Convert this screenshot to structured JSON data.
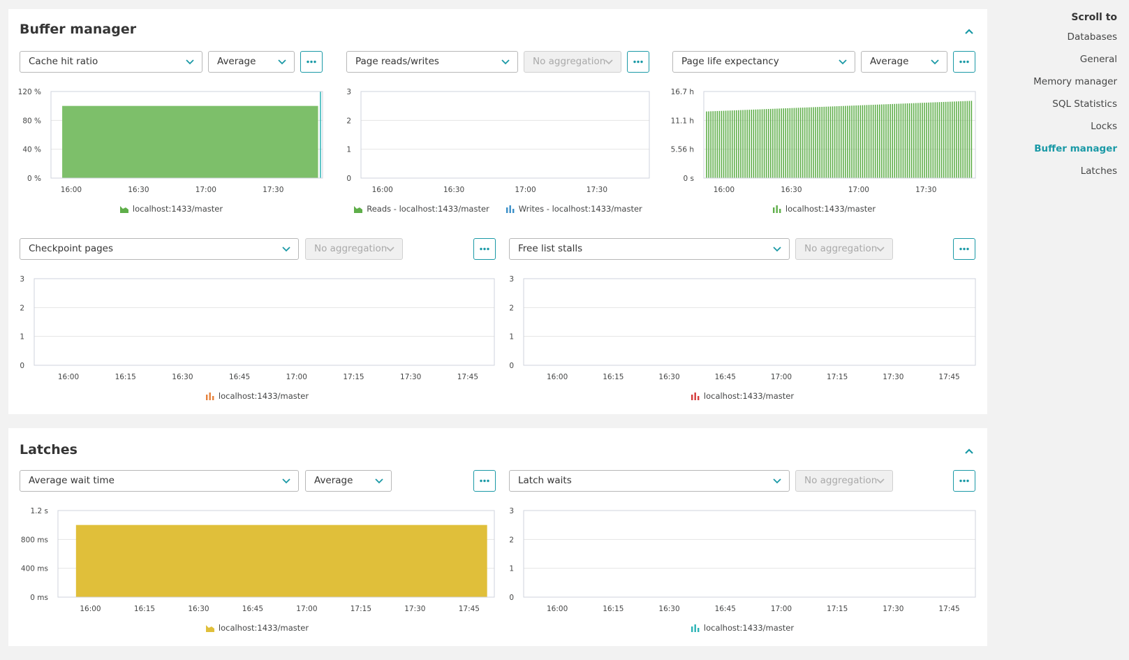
{
  "nav": {
    "title": "Scroll to",
    "items": [
      {
        "label": "Databases",
        "active": false
      },
      {
        "label": "General",
        "active": false
      },
      {
        "label": "Memory manager",
        "active": false
      },
      {
        "label": "SQL Statistics",
        "active": false
      },
      {
        "label": "Locks",
        "active": false
      },
      {
        "label": "Buffer manager",
        "active": true
      },
      {
        "label": "Latches",
        "active": false
      }
    ]
  },
  "colors": {
    "accent": "#1a99a6",
    "green": "#7dbf6a",
    "green_dark": "#5fae4a",
    "blue": "#3a8fc8",
    "orange": "#e6813a",
    "red": "#d43b3b",
    "yellow": "#e0bf3a",
    "teal": "#2ab3b5"
  },
  "buffer_manager": {
    "title": "Buffer manager",
    "cache_hit": {
      "metric": "Cache hit ratio",
      "aggregation": "Average",
      "legend": [
        {
          "label": "localhost:1433/master",
          "icon": "area-icon",
          "color": "#5fae4a"
        }
      ]
    },
    "page_rw": {
      "metric": "Page reads/writes",
      "aggregation": "No aggregation",
      "legend": [
        {
          "label": "Reads - localhost:1433/master",
          "icon": "area-icon",
          "color": "#5fae4a"
        },
        {
          "label": "Writes - localhost:1433/master",
          "icon": "bar-icon",
          "color": "#3a8fc8"
        }
      ]
    },
    "page_life": {
      "metric": "Page life expectancy",
      "aggregation": "Average",
      "legend": [
        {
          "label": "localhost:1433/master",
          "icon": "bar-icon",
          "color": "#5fae4a"
        }
      ]
    },
    "checkpoint": {
      "metric": "Checkpoint pages",
      "aggregation": "No aggregation",
      "legend": [
        {
          "label": "localhost:1433/master",
          "icon": "bar-icon",
          "color": "#e6813a"
        }
      ]
    },
    "free_list": {
      "metric": "Free list stalls",
      "aggregation": "No aggregation",
      "legend": [
        {
          "label": "localhost:1433/master",
          "icon": "bar-icon",
          "color": "#d43b3b"
        }
      ]
    }
  },
  "latches": {
    "title": "Latches",
    "wait_time": {
      "metric": "Average wait time",
      "aggregation": "Average",
      "legend": [
        {
          "label": "localhost:1433/master",
          "icon": "area-icon",
          "color": "#e0bf3a"
        }
      ]
    },
    "latch_waits": {
      "metric": "Latch waits",
      "aggregation": "No aggregation",
      "legend": [
        {
          "label": "localhost:1433/master",
          "icon": "bar-icon",
          "color": "#2ab3b5"
        }
      ]
    }
  },
  "chart_data": [
    {
      "id": "cache_hit",
      "type": "area",
      "x_ticks": [
        "16:00",
        "16:30",
        "17:00",
        "17:30"
      ],
      "y_ticks": [
        "0 %",
        "40 %",
        "80 %",
        "120 %"
      ],
      "ylim": [
        0,
        120
      ],
      "xlim": [
        "15:51",
        "17:52"
      ],
      "series": [
        {
          "color": "#7dbf6a",
          "x": [
            "15:56",
            "17:50"
          ],
          "y": [
            100,
            100
          ]
        }
      ]
    },
    {
      "id": "page_rw",
      "type": "line",
      "x_ticks": [
        "16:00",
        "16:30",
        "17:00",
        "17:30"
      ],
      "y_ticks": [
        "0",
        "1",
        "2",
        "3"
      ],
      "ylim": [
        0,
        3
      ],
      "xlim": [
        "15:51",
        "17:52"
      ],
      "series": []
    },
    {
      "id": "page_life",
      "type": "bar",
      "x_ticks": [
        "16:00",
        "16:30",
        "17:00",
        "17:30"
      ],
      "y_ticks": [
        "0 s",
        "5.56 h",
        "11.1 h",
        "16.7 h"
      ],
      "ylim": [
        0,
        16.7
      ],
      "xlim": [
        "15:51",
        "17:52"
      ],
      "series": [
        {
          "color": "#5fae4a",
          "x_start": "15:52",
          "x_end": "17:50",
          "y_start": 12.85,
          "y_end": 14.9
        }
      ]
    },
    {
      "id": "checkpoint",
      "type": "line",
      "x_ticks": [
        "16:00",
        "16:15",
        "16:30",
        "16:45",
        "17:00",
        "17:15",
        "17:30",
        "17:45"
      ],
      "y_ticks": [
        "0",
        "1",
        "2",
        "3"
      ],
      "ylim": [
        0,
        3
      ],
      "xlim": [
        "15:51",
        "17:52"
      ],
      "series": []
    },
    {
      "id": "free_list",
      "type": "line",
      "x_ticks": [
        "16:00",
        "16:15",
        "16:30",
        "16:45",
        "17:00",
        "17:15",
        "17:30",
        "17:45"
      ],
      "y_ticks": [
        "0",
        "1",
        "2",
        "3"
      ],
      "ylim": [
        0,
        3
      ],
      "xlim": [
        "15:51",
        "17:52"
      ],
      "series": []
    },
    {
      "id": "wait_time",
      "type": "area",
      "x_ticks": [
        "16:00",
        "16:15",
        "16:30",
        "16:45",
        "17:00",
        "17:15",
        "17:30",
        "17:45"
      ],
      "y_ticks": [
        "0 ms",
        "400 ms",
        "800 ms",
        "1.2 s"
      ],
      "ylim": [
        0,
        1.2
      ],
      "xlim": [
        "15:51",
        "17:52"
      ],
      "series": [
        {
          "color": "#e0bf3a",
          "x": [
            "15:56",
            "17:50"
          ],
          "y": [
            1.0,
            1.0
          ]
        }
      ]
    },
    {
      "id": "latch_waits",
      "type": "line",
      "x_ticks": [
        "16:00",
        "16:15",
        "16:30",
        "16:45",
        "17:00",
        "17:15",
        "17:30",
        "17:45"
      ],
      "y_ticks": [
        "0",
        "1",
        "2",
        "3"
      ],
      "ylim": [
        0,
        3
      ],
      "xlim": [
        "15:51",
        "17:52"
      ],
      "series": []
    }
  ]
}
